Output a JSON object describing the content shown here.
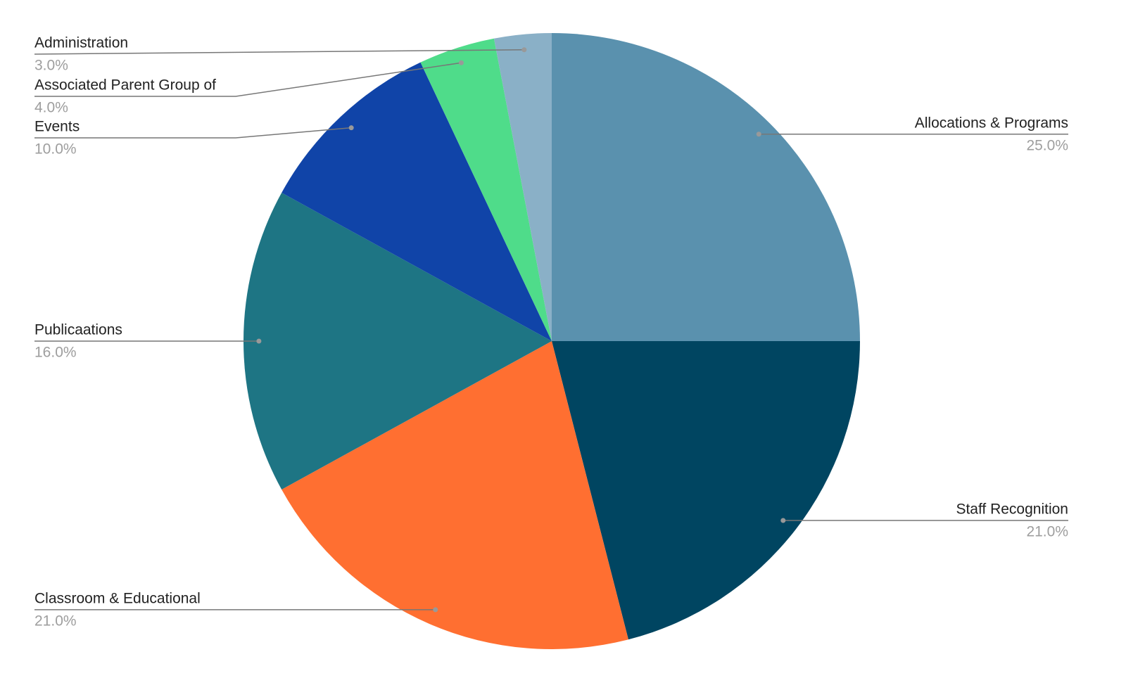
{
  "chart_data": {
    "type": "pie",
    "categories": [
      "Allocations & Programs",
      "Staff Recognition",
      "Classroom & Educational",
      "Publicaations",
      "Events",
      "Associated Parent Group of",
      "Administration"
    ],
    "values": [
      25,
      21,
      21,
      16,
      10,
      4,
      3
    ],
    "value_labels": [
      "25.0%",
      "21.0%",
      "21.0%",
      "16.0%",
      "10.0%",
      "4.0%",
      "3.0%"
    ],
    "colors": [
      "#5a91ae",
      "#004561",
      "#ff6f31",
      "#1e7584",
      "#1044a8",
      "#4fdc8a",
      "#8ab0c7"
    ]
  }
}
